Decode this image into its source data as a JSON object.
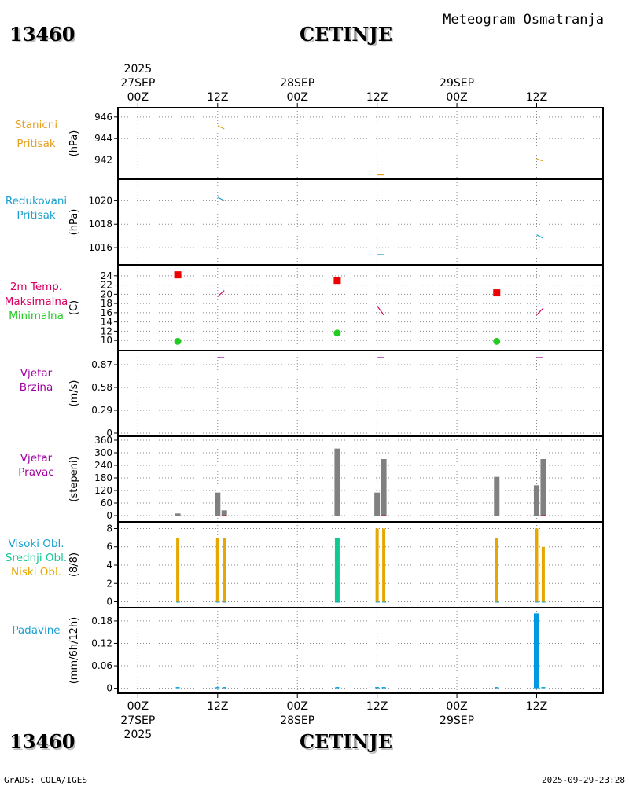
{
  "header": {
    "station_id": "13460",
    "station_name": "CETINJE",
    "title": "Meteogram Osmatranja"
  },
  "footer": {
    "credit": "GrADS: COLA/IGES",
    "timestamp": "2025-09-29-23:28"
  },
  "time_axis": {
    "year": "2025",
    "ticks": [
      {
        "hour": 0,
        "label": "00Z",
        "date": "27SEP"
      },
      {
        "hour": 12,
        "label": "12Z",
        "date": ""
      },
      {
        "hour": 24,
        "label": "00Z",
        "date": "28SEP"
      },
      {
        "hour": 36,
        "label": "12Z",
        "date": ""
      },
      {
        "hour": 48,
        "label": "00Z",
        "date": "29SEP"
      },
      {
        "hour": 60,
        "label": "12Z",
        "date": ""
      }
    ],
    "range_hours": [
      -3,
      70
    ]
  },
  "colors": {
    "pressure": "#e6a020",
    "reduced": "#1aa0d0",
    "temp": "#d80060",
    "wind": "#a000a0",
    "cloud": "#20b0c0",
    "bar_gray": "#808080",
    "tmax": "#ee0000",
    "tmin": "#22cc22",
    "cloud_low": "#e6a800",
    "cloud_mid": "#10c890",
    "precip": "#0098e0"
  },
  "chart_data": [
    {
      "type": "line",
      "id": "station_pressure",
      "label_lines": [
        "Stanicni",
        "Pritisak"
      ],
      "label_color": "#e6a020",
      "unit": "(hPa)",
      "ylim": [
        940.5,
        946.5
      ],
      "yticks": [
        942,
        944,
        946
      ],
      "series": [
        {
          "name": "Stanicni Pritisak",
          "color": "#e6a020",
          "segments": [
            [
              [
                12,
                945.2
              ],
              [
                13,
                944.9
              ]
            ],
            [
              [
                36,
                940.6
              ],
              [
                37,
                940.6
              ]
            ],
            [
              [
                60,
                942.1
              ],
              [
                61,
                941.9
              ]
            ]
          ]
        }
      ]
    },
    {
      "type": "line",
      "id": "reduced_pressure",
      "label_lines": [
        "Redukovani",
        "Pritisak"
      ],
      "label_color": "#1aa0d0",
      "unit": "(hPa)",
      "ylim": [
        1014.8,
        1021.5
      ],
      "yticks": [
        1016,
        1018,
        1020
      ],
      "series": [
        {
          "name": "Redukovani Pritisak",
          "color": "#1aa0d0",
          "segments": [
            [
              [
                12,
                1020.3
              ],
              [
                13,
                1020.0
              ]
            ],
            [
              [
                36,
                1015.4
              ],
              [
                37,
                1015.4
              ]
            ],
            [
              [
                60,
                1017.1
              ],
              [
                61,
                1016.8
              ]
            ]
          ]
        }
      ]
    },
    {
      "type": "line",
      "id": "temperature",
      "label_lines": [
        "2m Temp.",
        "Maksimalna",
        "Minimalna"
      ],
      "label_colors": [
        "#d80060",
        "#d80060",
        "#22cc22"
      ],
      "unit": "(C)",
      "ylim": [
        8.5,
        25.5
      ],
      "yticks": [
        10,
        12,
        14,
        16,
        18,
        20,
        22,
        24
      ],
      "series": [
        {
          "name": "2m Temp.",
          "color": "#d80060",
          "segments": [
            [
              [
                12,
                19.5
              ],
              [
                13,
                20.8
              ]
            ],
            [
              [
                36,
                17.5
              ],
              [
                37,
                15.5
              ]
            ],
            [
              [
                60,
                15.5
              ],
              [
                61,
                17.0
              ]
            ]
          ]
        }
      ],
      "max_markers": {
        "name": "Maksimalna",
        "points": [
          [
            6,
            24.2
          ],
          [
            30,
            23.0
          ],
          [
            54,
            20.3
          ]
        ]
      },
      "min_markers": {
        "name": "Minimalna",
        "points": [
          [
            6,
            9.8
          ],
          [
            30,
            11.6
          ],
          [
            54,
            9.8
          ]
        ]
      }
    },
    {
      "type": "line",
      "id": "wind_speed",
      "label_lines": [
        "Vjetar",
        "Brzina"
      ],
      "label_color": "#a000a0",
      "unit": "(m/s)",
      "ylim": [
        0,
        1.0
      ],
      "yticks": [
        0,
        0.29,
        0.58,
        0.87
      ],
      "ytick_labels": [
        "0",
        "0.29",
        "0.58",
        "0.87"
      ],
      "series": [
        {
          "name": "Vjetar Brzina",
          "color": "#a000a0",
          "segments": [
            [
              [
                12,
                0.96
              ],
              [
                13,
                0.96
              ]
            ],
            [
              [
                36,
                0.96
              ],
              [
                37,
                0.96
              ]
            ],
            [
              [
                60,
                0.96
              ],
              [
                61,
                0.96
              ]
            ]
          ]
        }
      ]
    },
    {
      "type": "bar",
      "id": "wind_direction",
      "label_lines": [
        "Vjetar",
        "Pravac"
      ],
      "label_color": "#a000a0",
      "unit": "(stepeni)",
      "ylim": [
        -15,
        360
      ],
      "yticks": [
        0,
        60,
        120,
        180,
        240,
        300,
        360
      ],
      "bars": [
        {
          "x": 6,
          "value": 10
        },
        {
          "x": 12,
          "value": 110
        },
        {
          "x": 13,
          "value": 25
        },
        {
          "x": 30,
          "value": 320
        },
        {
          "x": 36,
          "value": 110
        },
        {
          "x": 37,
          "value": 270
        },
        {
          "x": 54,
          "value": 185
        },
        {
          "x": 60,
          "value": 145
        },
        {
          "x": 61,
          "value": 270
        }
      ],
      "zero_ticks": [
        13,
        37,
        61
      ]
    },
    {
      "type": "bar",
      "id": "cloud_cover",
      "label_lines": [
        "Visoki Obl.",
        "Srednji Obl.",
        "Niski Obl."
      ],
      "label_colors": [
        "#1aa0d0",
        "#10c890",
        "#e6a800"
      ],
      "unit": "(8/8)",
      "ylim": [
        -0.3,
        8.3
      ],
      "yticks": [
        0,
        2,
        4,
        6,
        8
      ],
      "bars": [
        {
          "x": 6,
          "value": 7,
          "layer": "low"
        },
        {
          "x": 12,
          "value": 7,
          "layer": "low"
        },
        {
          "x": 13,
          "value": 7,
          "layer": "low"
        },
        {
          "x": 30,
          "value": 7,
          "layer": "mid"
        },
        {
          "x": 36,
          "value": 8,
          "layer": "low"
        },
        {
          "x": 37,
          "value": 8,
          "layer": "low"
        },
        {
          "x": 54,
          "value": 7,
          "layer": "low"
        },
        {
          "x": 60,
          "value": 8,
          "layer": "low"
        },
        {
          "x": 61,
          "value": 6,
          "layer": "low"
        }
      ]
    },
    {
      "type": "bar",
      "id": "precipitation",
      "label_lines": [
        "Padavine"
      ],
      "label_color": "#1aa0d0",
      "unit": "(mm/6h/12h)",
      "ylim": [
        -0.005,
        0.205
      ],
      "yticks": [
        0,
        0.06,
        0.12,
        0.18
      ],
      "ytick_labels": [
        "0",
        "0.06",
        "0.12",
        "0.18"
      ],
      "bars": [
        {
          "x": 6,
          "value": 0
        },
        {
          "x": 12,
          "value": 0
        },
        {
          "x": 13,
          "value": 0
        },
        {
          "x": 30,
          "value": 0
        },
        {
          "x": 36,
          "value": 0
        },
        {
          "x": 37,
          "value": 0
        },
        {
          "x": 54,
          "value": 0
        },
        {
          "x": 60,
          "value": 0.2
        },
        {
          "x": 61,
          "value": 0
        }
      ]
    }
  ]
}
